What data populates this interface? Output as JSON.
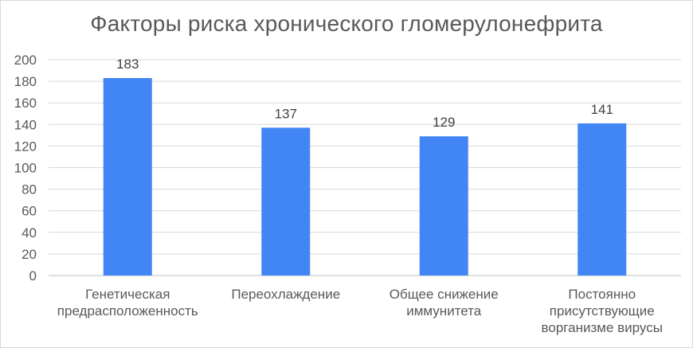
{
  "chart_data": {
    "type": "bar",
    "title": "Факторы риска хронического гломерулонефрита",
    "categories": [
      [
        "Генетическая",
        "предрасположенность"
      ],
      [
        "Переохлаждение"
      ],
      [
        "Общее снижение",
        "иммунитета"
      ],
      [
        "Постоянно",
        "присутствующие",
        "ворганизме вирусы"
      ]
    ],
    "values": [
      183,
      137,
      129,
      141
    ],
    "data_labels": [
      "183",
      "137",
      "129",
      "141"
    ],
    "ylim": [
      0,
      200
    ],
    "yticks": [
      "0",
      "20",
      "40",
      "60",
      "80",
      "100",
      "120",
      "140",
      "160",
      "180",
      "200"
    ],
    "grid": true,
    "legend": "none",
    "colors": {
      "bar": "#4285f4",
      "grid": "#d9d9d9",
      "axis": "#bfbfbf"
    }
  }
}
